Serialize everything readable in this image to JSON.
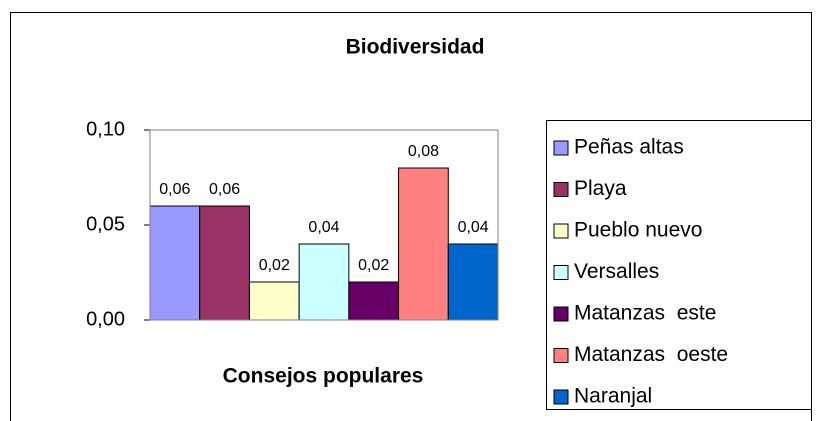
{
  "chart_data": {
    "type": "bar",
    "title": "Biodiversidad",
    "x_label": "Consejos populares",
    "categories": [
      null
    ],
    "series": [
      {
        "name": "Peñas altas",
        "color": "#9999ff",
        "values": [
          0.06
        ],
        "value_labels": [
          "0,06"
        ]
      },
      {
        "name": "Playa",
        "color": "#993366",
        "values": [
          0.06
        ],
        "value_labels": [
          "0,06"
        ]
      },
      {
        "name": "Pueblo nuevo",
        "color": "#ffffcc",
        "values": [
          0.02
        ],
        "value_labels": [
          "0,02"
        ]
      },
      {
        "name": "Versalles",
        "color": "#ccffff",
        "values": [
          0.04
        ],
        "value_labels": [
          "0,04"
        ]
      },
      {
        "name": "Matanzas  este",
        "color": "#660066",
        "values": [
          0.02
        ],
        "value_labels": [
          "0,02"
        ]
      },
      {
        "name": "Matanzas  oeste",
        "color": "#ff8080",
        "values": [
          0.08
        ],
        "value_labels": [
          "0,08"
        ]
      },
      {
        "name": "Naranjal",
        "color": "#0066cc",
        "values": [
          0.04
        ],
        "value_labels": [
          "0,04"
        ]
      }
    ],
    "ylim": [
      0,
      0.1
    ],
    "yticks": [
      {
        "value": 0,
        "label": "0,00"
      },
      {
        "value": 0.05,
        "label": "0,05"
      },
      {
        "value": 0.1,
        "label": "0,10"
      }
    ],
    "legend": "right"
  }
}
